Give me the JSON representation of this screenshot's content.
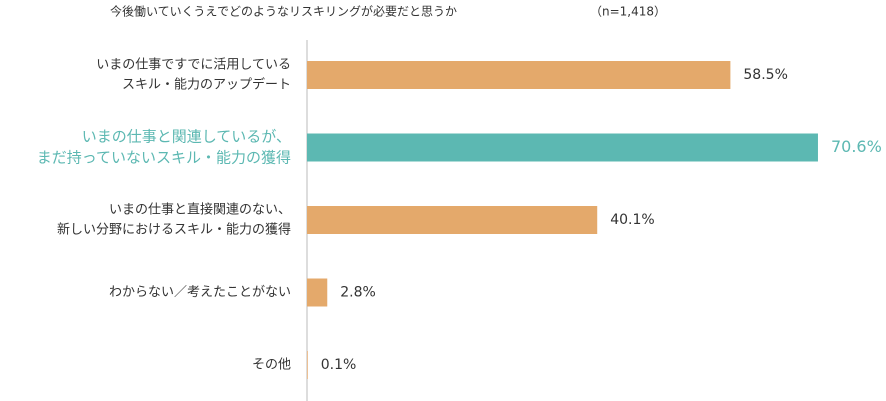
{
  "chart_data": {
    "type": "bar",
    "orientation": "horizontal",
    "title": "今後働いていくうえでどのようなリスキリングが必要だと思うか",
    "subtitle": "（n=1,418）",
    "categories": [
      [
        "いまの仕事ですでに活用している",
        "スキル・能力のアップデート"
      ],
      [
        "いまの仕事と関連しているが、",
        "まだ持っていないスキル・能力の獲得"
      ],
      [
        "いまの仕事と直接関連のない、",
        "新しい分野におけるスキル・能力の獲得"
      ],
      [
        "わからない／考えたことがない"
      ],
      [
        "その他"
      ]
    ],
    "values": [
      58.5,
      70.6,
      40.1,
      2.8,
      0.1
    ],
    "value_labels": [
      "58.5%",
      "70.6%",
      "40.1%",
      "2.8%",
      "0.1%"
    ],
    "colors": [
      "#e4a96b",
      "#5cb8b2",
      "#e4a96b",
      "#e4a96b",
      "#e4a96b"
    ],
    "highlight": 1,
    "highlight_color": "#5cb8b2",
    "xlim": [
      0,
      80
    ]
  }
}
